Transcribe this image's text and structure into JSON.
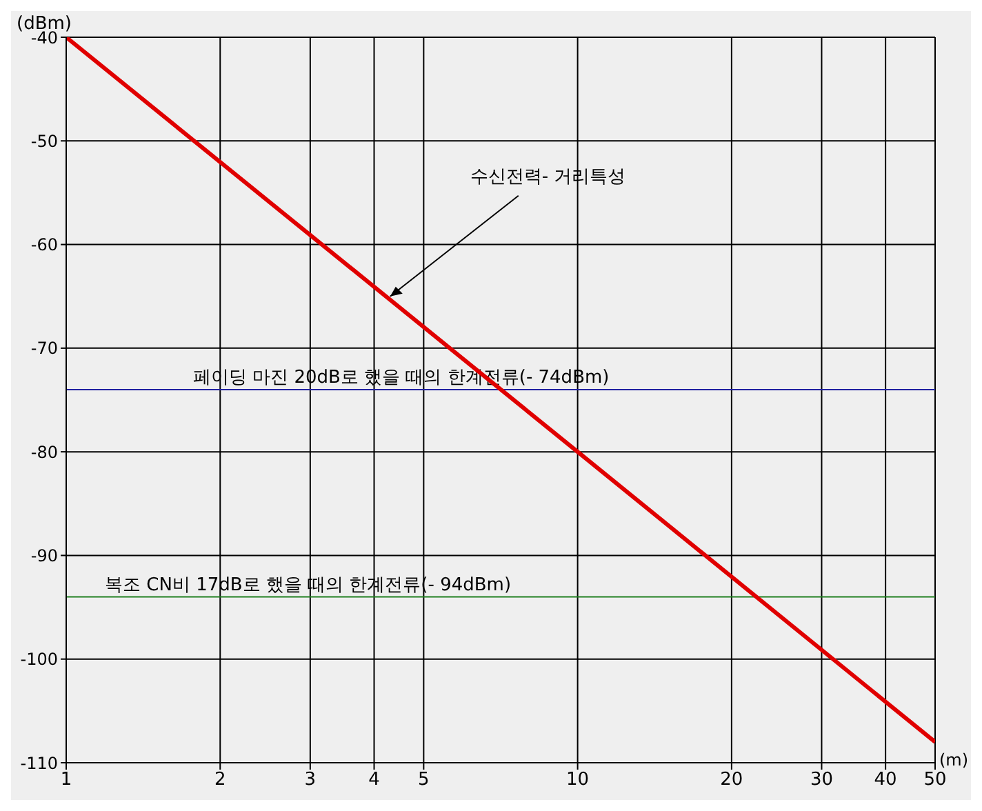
{
  "chart_data": {
    "type": "line",
    "xlabel": "(m)",
    "ylabel": "(dBm)",
    "log": "x",
    "x": [
      1,
      10,
      50
    ],
    "series": [
      {
        "color": "#e00000",
        "values": [
          -40,
          -80,
          -108
        ]
      }
    ],
    "xlim": [
      1,
      50
    ],
    "xticks": [
      1,
      2,
      3,
      4,
      5,
      10,
      20,
      30,
      40,
      50
    ],
    "ylim": [
      -110,
      -40
    ],
    "yticks": [
      -110,
      -100,
      -90,
      -80,
      -70,
      -60,
      -50,
      -40
    ],
    "grid": true,
    "marker": "none",
    "line_style": "solid",
    "legend": false,
    "ref_lines": [
      {
        "axis": "y",
        "value": -74,
        "label": "페이딩 마진 20dB로 했을 때의 한계전류(- 74dBm)",
        "color": "#2020a0"
      },
      {
        "axis": "y",
        "value": -94,
        "label": "복조 CN비 17dB로 했을 때의 한계전류(- 94dBm)",
        "color": "#208020"
      }
    ],
    "annotations": [
      {
        "text": "수신전력- 거리특성",
        "x": 4.3,
        "y": -65
      }
    ]
  }
}
